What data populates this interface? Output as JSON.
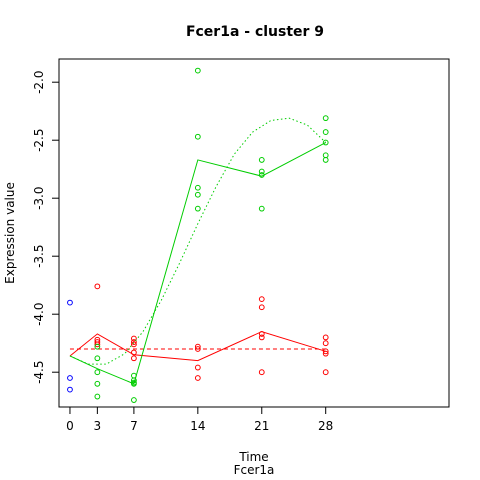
{
  "chart_data": {
    "type": "scatter",
    "title": "Fcer1a - cluster 9",
    "xlabel": "Time",
    "sublabel": "Fcer1a",
    "ylabel": "Expression value",
    "x_ticks": [
      0,
      3,
      7,
      14,
      21,
      28
    ],
    "y_ticks": [
      -2.0,
      -2.5,
      -3.0,
      -3.5,
      -4.0,
      -4.5
    ],
    "y_tick_labels": [
      "-2.0",
      "-2.5",
      "-3.0",
      "-3.5",
      "-4.0",
      "-4.5"
    ],
    "xlim": [
      -1.2,
      41.5
    ],
    "ylim": [
      -4.8,
      -1.8
    ],
    "grid": false,
    "legend": "none",
    "series": [
      {
        "color": "#0000ff",
        "points": [
          [
            0,
            -3.9
          ],
          [
            0,
            -4.55
          ],
          [
            0,
            -4.65
          ]
        ]
      },
      {
        "color": "#ff0000",
        "points": [
          [
            3,
            -3.76
          ],
          [
            3,
            -4.22
          ],
          [
            3,
            -4.24
          ],
          [
            3,
            -4.26
          ],
          [
            7,
            -4.21
          ],
          [
            7,
            -4.24
          ],
          [
            7,
            -4.26
          ],
          [
            7,
            -4.33
          ],
          [
            7,
            -4.38
          ],
          [
            14,
            -4.28
          ],
          [
            14,
            -4.3
          ],
          [
            14,
            -4.46
          ],
          [
            14,
            -4.55
          ],
          [
            21,
            -3.87
          ],
          [
            21,
            -3.94
          ],
          [
            21,
            -4.17
          ],
          [
            21,
            -4.2
          ],
          [
            21,
            -4.5
          ],
          [
            28,
            -4.2
          ],
          [
            28,
            -4.25
          ],
          [
            28,
            -4.32
          ],
          [
            28,
            -4.34
          ],
          [
            28,
            -4.5
          ]
        ],
        "mean_line": [
          [
            0,
            -4.36
          ],
          [
            3,
            -4.17
          ],
          [
            7,
            -4.35
          ],
          [
            14,
            -4.4
          ],
          [
            21,
            -4.15
          ],
          [
            28,
            -4.32
          ]
        ],
        "fit_line": [
          [
            0,
            -4.3
          ],
          [
            28,
            -4.3
          ]
        ]
      },
      {
        "color": "#00cd00",
        "points": [
          [
            3,
            -4.28
          ],
          [
            3,
            -4.38
          ],
          [
            3,
            -4.5
          ],
          [
            3,
            -4.6
          ],
          [
            3,
            -4.71
          ],
          [
            7,
            -4.53
          ],
          [
            7,
            -4.57
          ],
          [
            7,
            -4.59
          ],
          [
            7,
            -4.6
          ],
          [
            7,
            -4.74
          ],
          [
            14,
            -1.9
          ],
          [
            14,
            -2.47
          ],
          [
            14,
            -2.91
          ],
          [
            14,
            -2.97
          ],
          [
            14,
            -3.09
          ],
          [
            21,
            -2.67
          ],
          [
            21,
            -2.77
          ],
          [
            21,
            -2.8
          ],
          [
            21,
            -3.09
          ],
          [
            28,
            -2.31
          ],
          [
            28,
            -2.43
          ],
          [
            28,
            -2.52
          ],
          [
            28,
            -2.63
          ],
          [
            28,
            -2.67
          ]
        ],
        "mean_line": [
          [
            0,
            -4.36
          ],
          [
            3,
            -4.47
          ],
          [
            7,
            -4.6
          ],
          [
            14,
            -2.67
          ],
          [
            21,
            -2.81
          ],
          [
            28,
            -2.52
          ]
        ],
        "fit_line": [
          [
            0,
            -4.36
          ],
          [
            2,
            -4.43
          ],
          [
            4,
            -4.43
          ],
          [
            6,
            -4.34
          ],
          [
            8,
            -4.15
          ],
          [
            10,
            -3.88
          ],
          [
            12,
            -3.56
          ],
          [
            14,
            -3.22
          ],
          [
            16,
            -2.9
          ],
          [
            18,
            -2.62
          ],
          [
            20,
            -2.43
          ],
          [
            22,
            -2.33
          ],
          [
            24,
            -2.31
          ],
          [
            26,
            -2.37
          ],
          [
            28,
            -2.52
          ]
        ]
      }
    ]
  }
}
